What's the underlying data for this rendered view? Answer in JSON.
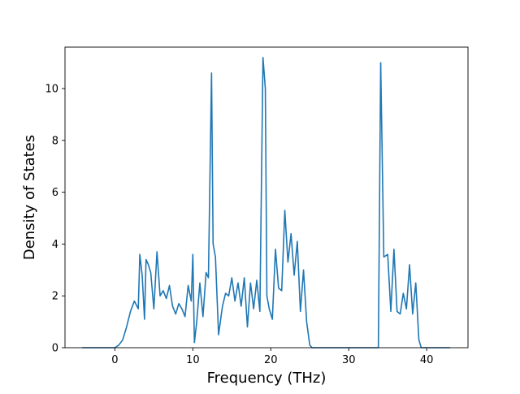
{
  "chart_data": {
    "type": "line",
    "title": "",
    "xlabel": "Frequency (THz)",
    "ylabel": "Density of States",
    "xlim": [
      -6.4,
      45.3
    ],
    "ylim": [
      0,
      11.6
    ],
    "xticks": [
      0,
      10,
      20,
      30,
      40
    ],
    "yticks": [
      0,
      2,
      4,
      6,
      8,
      10
    ],
    "grid": false,
    "legend": "none",
    "line_color": "#1f77b4",
    "series": [
      {
        "x": [
          -4.2,
          -3,
          -2,
          -1,
          0,
          0.5,
          1,
          1.5,
          2,
          2.5,
          3,
          3.2,
          3.5,
          3.8,
          4,
          4.3,
          4.6,
          5,
          5.4,
          5.8,
          6.2,
          6.6,
          7,
          7.4,
          7.8,
          8.2,
          8.6,
          9,
          9.4,
          9.8,
          10,
          10.2,
          10.5,
          10.9,
          11.3,
          11.7,
          12,
          12.4,
          12.6,
          12.9,
          13.3,
          13.8,
          14.2,
          14.6,
          15,
          15.4,
          15.8,
          16.2,
          16.6,
          17,
          17.4,
          17.8,
          18.2,
          18.6,
          19,
          19.3,
          19.5,
          19.8,
          20.2,
          20.6,
          21,
          21.4,
          21.8,
          22.2,
          22.6,
          23,
          23.4,
          23.8,
          24.2,
          24.6,
          25,
          25.3,
          25.6,
          26,
          27,
          28,
          29,
          30,
          31,
          32,
          33,
          33.8,
          34.1,
          34.5,
          35,
          35.4,
          35.8,
          36.2,
          36.6,
          37,
          37.4,
          37.8,
          38.2,
          38.6,
          39,
          39.3,
          39.6,
          40,
          41,
          42,
          43
        ],
        "y": [
          0,
          0,
          0,
          0,
          0,
          0.1,
          0.3,
          0.8,
          1.4,
          1.8,
          1.5,
          3.6,
          2.8,
          1.1,
          3.4,
          3.2,
          2.9,
          1.5,
          3.7,
          2.0,
          2.2,
          1.9,
          2.4,
          1.6,
          1.3,
          1.7,
          1.5,
          1.2,
          2.4,
          1.8,
          3.6,
          0.2,
          1.0,
          2.5,
          1.2,
          2.9,
          2.7,
          10.6,
          4.0,
          3.5,
          0.5,
          1.6,
          2.1,
          2.0,
          2.7,
          1.8,
          2.5,
          1.6,
          2.7,
          0.8,
          2.5,
          1.5,
          2.6,
          1.4,
          11.2,
          10.0,
          2.0,
          1.5,
          1.1,
          3.8,
          2.3,
          2.2,
          5.3,
          3.3,
          4.4,
          2.8,
          4.1,
          1.4,
          3.0,
          1.0,
          0.1,
          0,
          0,
          0,
          0,
          0,
          0,
          0,
          0,
          0,
          0,
          0,
          11.0,
          3.5,
          3.6,
          1.4,
          3.8,
          1.4,
          1.3,
          2.1,
          1.5,
          3.2,
          1.3,
          2.5,
          0.3,
          0,
          0,
          0,
          0,
          0,
          0
        ]
      }
    ]
  }
}
